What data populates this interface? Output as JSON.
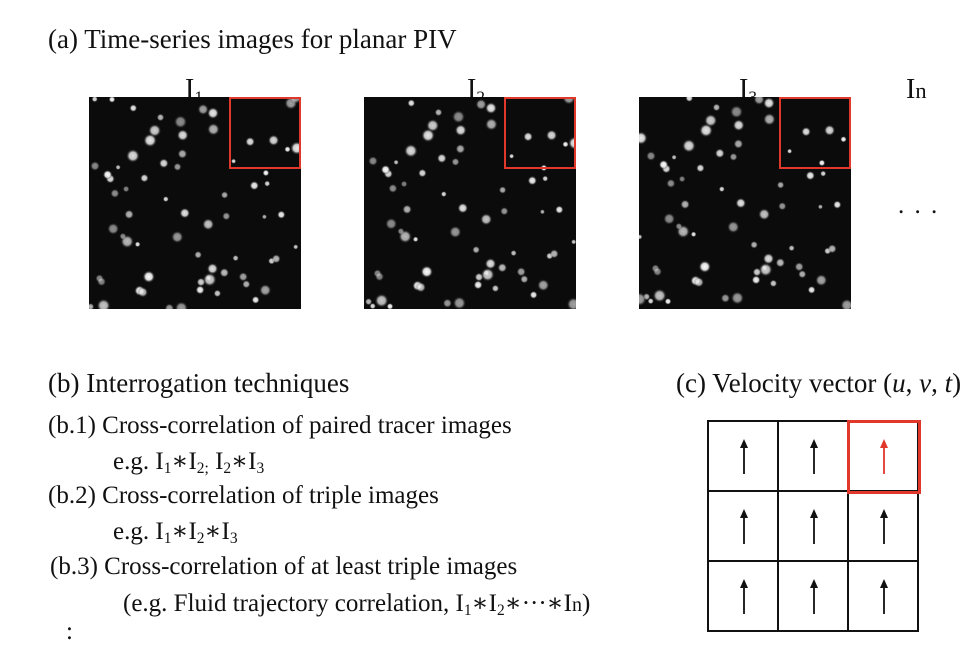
{
  "section_a": {
    "heading": "(a) Time-series images for planar PIV",
    "frames": [
      {
        "base": "I",
        "sub": "1"
      },
      {
        "base": "I",
        "sub": "2"
      },
      {
        "base": "I",
        "sub": "3"
      }
    ],
    "last_frame": {
      "base": "I",
      "sub": "n"
    },
    "ellipsis": ". . ."
  },
  "section_b": {
    "heading": "(b) Interrogation techniques",
    "items": [
      {
        "label": "(b.1) Cross-correlation of paired tracer images"
      },
      {
        "label": "(b.2) Cross-correlation of triple images"
      },
      {
        "label": "(b.3) Cross-correlation of at least triple images"
      }
    ],
    "eg_prefix": "e.g.",
    "eg_paren_prefix": "(e.g. Fluid trajectory correlation,",
    "ops": {
      "star": "∗",
      "semicolon": ";",
      "dots": "···",
      "close_paren": ")"
    },
    "trailing_dots": ":"
  },
  "section_c": {
    "heading_prefix": "(c) Velocity vector (",
    "vars": [
      "u",
      "v",
      "t"
    ],
    "separator": ", ",
    "heading_suffix": ")",
    "highlight_color": "#e0382b",
    "arrow_color": "#111111"
  }
}
